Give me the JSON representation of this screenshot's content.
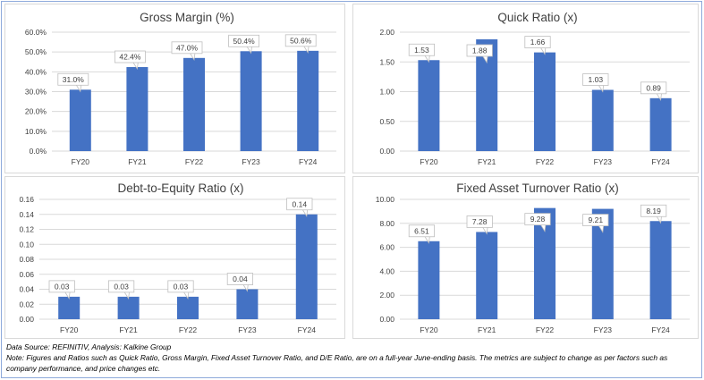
{
  "colors": {
    "bar": "#4472c4",
    "grid": "#d9d9d9",
    "axis_text": "#404040",
    "title_text": "#404040"
  },
  "chart_data": [
    {
      "type": "bar",
      "title": "Gross Margin (%)",
      "categories": [
        "FY20",
        "FY21",
        "FY22",
        "FY23",
        "FY24"
      ],
      "values": [
        31.0,
        42.4,
        47.0,
        50.4,
        50.6
      ],
      "value_labels": [
        "31.0%",
        "42.4%",
        "47.0%",
        "50.4%",
        "50.6%"
      ],
      "ylim": [
        0,
        60
      ],
      "yticks": [
        0,
        10,
        20,
        30,
        40,
        50,
        60
      ],
      "ytick_labels": [
        "0.0%",
        "10.0%",
        "20.0%",
        "30.0%",
        "40.0%",
        "50.0%",
        "60.0%"
      ],
      "grid": true
    },
    {
      "type": "bar",
      "title": "Quick Ratio (x)",
      "categories": [
        "FY20",
        "FY21",
        "FY22",
        "FY23",
        "FY24"
      ],
      "values": [
        1.53,
        1.88,
        1.66,
        1.03,
        0.89
      ],
      "value_labels": [
        "1.53",
        "1.88",
        "1.66",
        "1.03",
        "0.89"
      ],
      "ylim": [
        0,
        2
      ],
      "yticks": [
        0,
        0.5,
        1,
        1.5,
        2
      ],
      "ytick_labels": [
        "0.00",
        "0.50",
        "1.00",
        "1.50",
        "2.00"
      ],
      "grid": true
    },
    {
      "type": "bar",
      "title": "Debt-to-Equity Ratio (x)",
      "categories": [
        "FY20",
        "FY21",
        "FY22",
        "FY23",
        "FY24"
      ],
      "values": [
        0.03,
        0.03,
        0.03,
        0.04,
        0.14
      ],
      "value_labels": [
        "0.03",
        "0.03",
        "0.03",
        "0.04",
        "0.14"
      ],
      "ylim": [
        0,
        0.16
      ],
      "yticks": [
        0,
        0.02,
        0.04,
        0.06,
        0.08,
        0.1,
        0.12,
        0.14,
        0.16
      ],
      "ytick_labels": [
        "0.00",
        "0.02",
        "0.04",
        "0.06",
        "0.08",
        "0.10",
        "0.12",
        "0.14",
        "0.16"
      ],
      "grid": true
    },
    {
      "type": "bar",
      "title": "Fixed Asset Turnover Ratio (x)",
      "categories": [
        "FY20",
        "FY21",
        "FY22",
        "FY23",
        "FY24"
      ],
      "values": [
        6.51,
        7.28,
        9.28,
        9.21,
        8.19
      ],
      "value_labels": [
        "6.51",
        "7.28",
        "9.28",
        "9.21",
        "8.19"
      ],
      "ylim": [
        0,
        10
      ],
      "yticks": [
        0,
        2,
        4,
        6,
        8,
        10
      ],
      "ytick_labels": [
        "0.00",
        "2.00",
        "4.00",
        "6.00",
        "8.00",
        "10.00"
      ],
      "grid": true
    }
  ],
  "notes": {
    "source": "Data Source: REFINITIV, Analysis: Kalkine Group",
    "note": "Note: Figures and Ratios such as Quick Ratio, Gross Margin, Fixed Asset Turnover Ratio, and D/E Ratio, are on a full-year June-ending basis. The metrics are subject to change as per factors such as company performance, and price changes etc."
  }
}
